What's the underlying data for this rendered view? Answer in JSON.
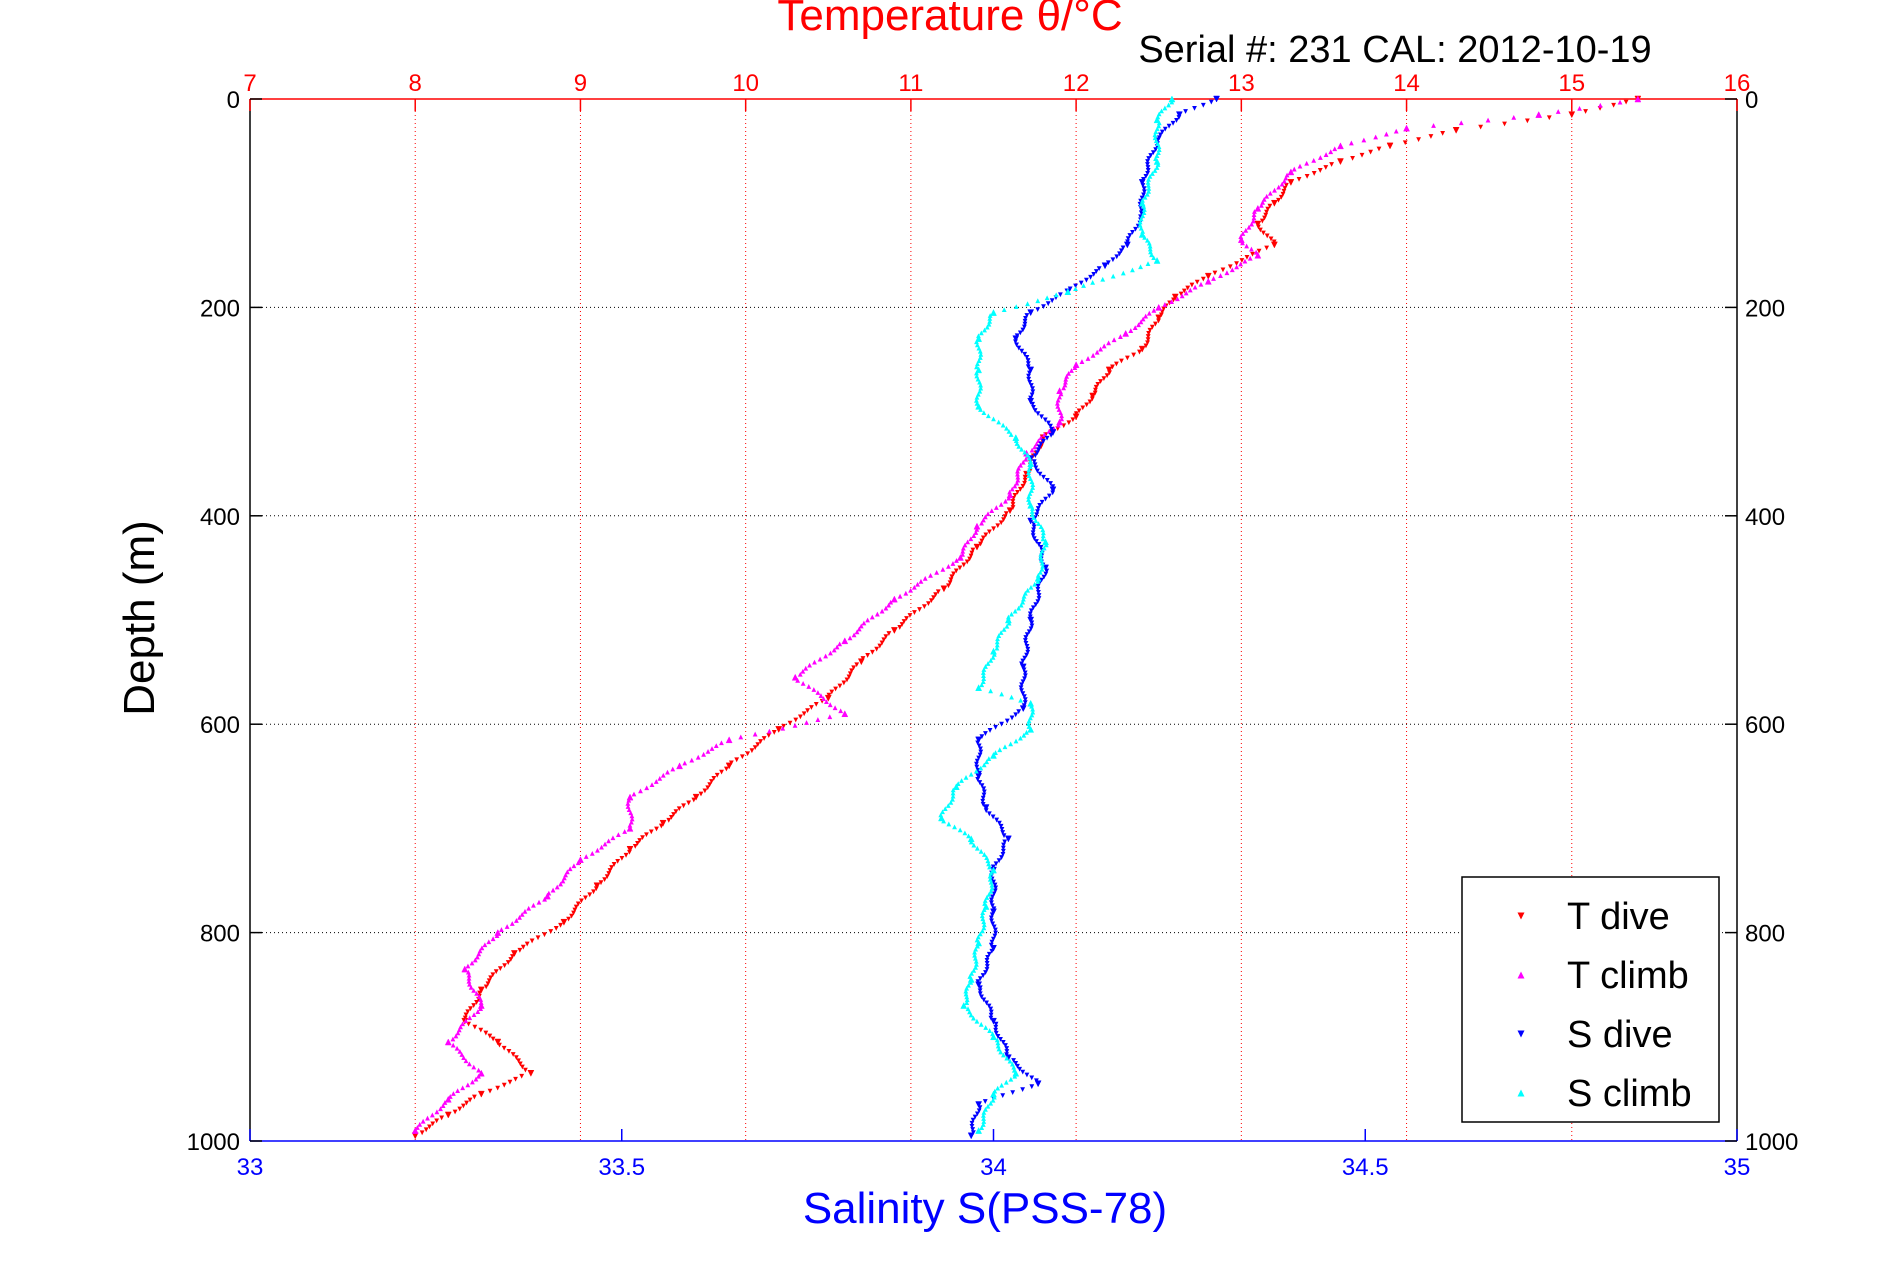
{
  "chart_data": {
    "type": "scatter",
    "title": "Temperature θ/°C",
    "subtitle": "Serial #: 231  CAL: 2012-10-19",
    "ylabel": "Depth (m)",
    "xlabel_bottom": "Salinity S(PSS-78)",
    "y_axis": {
      "ticks": [
        0,
        200,
        400,
        600,
        800,
        1000
      ],
      "ylim": [
        0,
        1000
      ],
      "reversed": true,
      "grid": true
    },
    "x_axis_top": {
      "label": "Temperature θ/°C",
      "ticks": [
        7,
        8,
        9,
        10,
        11,
        12,
        13,
        14,
        15,
        16
      ],
      "xlim": [
        7,
        16
      ],
      "grid": true
    },
    "x_axis_bottom": {
      "label": "Salinity S(PSS-78)",
      "ticks": [
        33,
        33.5,
        34,
        34.5,
        35
      ],
      "xlim": [
        33,
        35
      ]
    },
    "legend": {
      "position": "bottom-right",
      "entries": [
        "T dive",
        "T climb",
        "S dive",
        "S climb"
      ]
    },
    "colors": {
      "top_axis": "#ff0000",
      "bottom_axis": "#0000ff",
      "grid_top": "#ff0000",
      "grid_y": "#000000"
    },
    "series": [
      {
        "name": "T dive",
        "axis": "top",
        "color": "#ff0000",
        "marker": "triangle-down",
        "points": [
          [
            15.4,
            0
          ],
          [
            15.0,
            15
          ],
          [
            14.3,
            30
          ],
          [
            13.9,
            45
          ],
          [
            13.6,
            60
          ],
          [
            13.3,
            80
          ],
          [
            13.2,
            100
          ],
          [
            13.1,
            120
          ],
          [
            13.2,
            140
          ],
          [
            12.8,
            170
          ],
          [
            12.6,
            190
          ],
          [
            12.5,
            210
          ],
          [
            12.4,
            240
          ],
          [
            12.2,
            260
          ],
          [
            12.1,
            285
          ],
          [
            12.0,
            305
          ],
          [
            11.8,
            325
          ],
          [
            11.7,
            360
          ],
          [
            11.6,
            395
          ],
          [
            11.4,
            430
          ],
          [
            11.2,
            470
          ],
          [
            10.9,
            510
          ],
          [
            10.7,
            540
          ],
          [
            10.5,
            575
          ],
          [
            10.2,
            605
          ],
          [
            9.9,
            640
          ],
          [
            9.7,
            670
          ],
          [
            9.5,
            695
          ],
          [
            9.3,
            720
          ],
          [
            9.1,
            755
          ],
          [
            8.9,
            790
          ],
          [
            8.6,
            820
          ],
          [
            8.4,
            855
          ],
          [
            8.3,
            885
          ],
          [
            8.5,
            905
          ],
          [
            8.7,
            935
          ],
          [
            8.4,
            955
          ],
          [
            8.2,
            975
          ],
          [
            8.0,
            995
          ]
        ]
      },
      {
        "name": "T climb",
        "axis": "top",
        "color": "#ff00ff",
        "marker": "triangle-up",
        "points": [
          [
            15.4,
            0
          ],
          [
            14.8,
            15
          ],
          [
            14.0,
            28
          ],
          [
            13.6,
            45
          ],
          [
            13.3,
            70
          ],
          [
            13.1,
            105
          ],
          [
            13.0,
            135
          ],
          [
            13.1,
            150
          ],
          [
            12.8,
            175
          ],
          [
            12.5,
            200
          ],
          [
            12.3,
            225
          ],
          [
            12.0,
            255
          ],
          [
            11.9,
            280
          ],
          [
            11.9,
            310
          ],
          [
            11.7,
            340
          ],
          [
            11.6,
            380
          ],
          [
            11.4,
            410
          ],
          [
            11.3,
            440
          ],
          [
            10.9,
            480
          ],
          [
            10.6,
            520
          ],
          [
            10.3,
            555
          ],
          [
            10.6,
            590
          ],
          [
            9.9,
            615
          ],
          [
            9.6,
            640
          ],
          [
            9.3,
            670
          ],
          [
            9.3,
            700
          ],
          [
            9.0,
            730
          ],
          [
            8.8,
            765
          ],
          [
            8.5,
            800
          ],
          [
            8.3,
            835
          ],
          [
            8.4,
            870
          ],
          [
            8.2,
            905
          ],
          [
            8.4,
            935
          ],
          [
            8.2,
            960
          ],
          [
            8.0,
            990
          ]
        ]
      },
      {
        "name": "S dive",
        "axis": "bottom",
        "color": "#0000ff",
        "marker": "triangle-down",
        "points": [
          [
            34.3,
            0
          ],
          [
            34.25,
            15
          ],
          [
            34.22,
            40
          ],
          [
            34.2,
            80
          ],
          [
            34.2,
            110
          ],
          [
            34.18,
            140
          ],
          [
            34.15,
            160
          ],
          [
            34.1,
            185
          ],
          [
            34.05,
            205
          ],
          [
            34.03,
            230
          ],
          [
            34.05,
            260
          ],
          [
            34.05,
            290
          ],
          [
            34.08,
            320
          ],
          [
            34.05,
            345
          ],
          [
            34.08,
            375
          ],
          [
            34.05,
            405
          ],
          [
            34.07,
            450
          ],
          [
            34.05,
            500
          ],
          [
            34.04,
            545
          ],
          [
            34.04,
            585
          ],
          [
            33.98,
            615
          ],
          [
            33.98,
            650
          ],
          [
            33.99,
            680
          ],
          [
            34.02,
            710
          ],
          [
            34.0,
            740
          ],
          [
            34.0,
            780
          ],
          [
            34.0,
            815
          ],
          [
            33.98,
            850
          ],
          [
            34.0,
            885
          ],
          [
            34.02,
            920
          ],
          [
            34.06,
            945
          ],
          [
            33.98,
            965
          ],
          [
            33.97,
            995
          ]
        ]
      },
      {
        "name": "S climb",
        "axis": "bottom",
        "color": "#00ffff",
        "marker": "triangle-up",
        "points": [
          [
            34.24,
            0
          ],
          [
            34.22,
            20
          ],
          [
            34.22,
            60
          ],
          [
            34.2,
            100
          ],
          [
            34.2,
            130
          ],
          [
            34.22,
            155
          ],
          [
            34.1,
            185
          ],
          [
            34.0,
            205
          ],
          [
            33.98,
            230
          ],
          [
            33.98,
            260
          ],
          [
            33.98,
            295
          ],
          [
            34.03,
            325
          ],
          [
            34.05,
            350
          ],
          [
            34.05,
            390
          ],
          [
            34.07,
            425
          ],
          [
            34.06,
            460
          ],
          [
            34.02,
            500
          ],
          [
            34.0,
            530
          ],
          [
            33.98,
            565
          ],
          [
            34.05,
            580
          ],
          [
            34.05,
            605
          ],
          [
            34.0,
            630
          ],
          [
            33.95,
            660
          ],
          [
            33.93,
            690
          ],
          [
            33.97,
            710
          ],
          [
            34.0,
            740
          ],
          [
            33.99,
            775
          ],
          [
            33.98,
            810
          ],
          [
            33.97,
            845
          ],
          [
            33.96,
            870
          ],
          [
            34.0,
            900
          ],
          [
            34.03,
            935
          ],
          [
            34.0,
            955
          ],
          [
            33.98,
            990
          ]
        ]
      }
    ]
  }
}
